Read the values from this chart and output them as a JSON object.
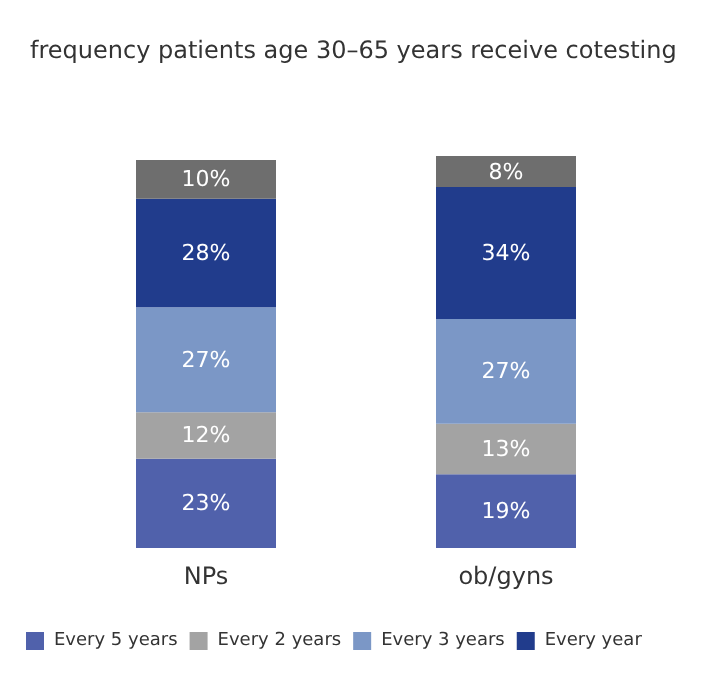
{
  "chart_data": {
    "type": "bar",
    "title": "frequency patients age 30–65 years receive cotesting",
    "categories": [
      "NPs",
      "ob/gyns"
    ],
    "stacked": true,
    "legend": "bottom",
    "tick_labels": "x",
    "grid": false,
    "series": [
      {
        "name": "Every 5 years",
        "color": "#5061ab",
        "values": [
          23,
          19
        ],
        "value_labels": [
          "23%",
          "19%"
        ]
      },
      {
        "name": "Every 2 years",
        "color": "#a3a3a3",
        "values": [
          12,
          13
        ],
        "value_labels": [
          "12%",
          "13%"
        ]
      },
      {
        "name": "Every 3 years",
        "color": "#7b97c6",
        "values": [
          27,
          27
        ],
        "value_labels": [
          "27%",
          "27%"
        ]
      },
      {
        "name": "Every year",
        "color": "#213c8c",
        "values": [
          28,
          34
        ],
        "value_labels": [
          "28%",
          "34%"
        ]
      },
      {
        "color": "#6e6e6e",
        "values": [
          10,
          8
        ],
        "value_labels": [
          "10%",
          "8%"
        ]
      }
    ]
  }
}
